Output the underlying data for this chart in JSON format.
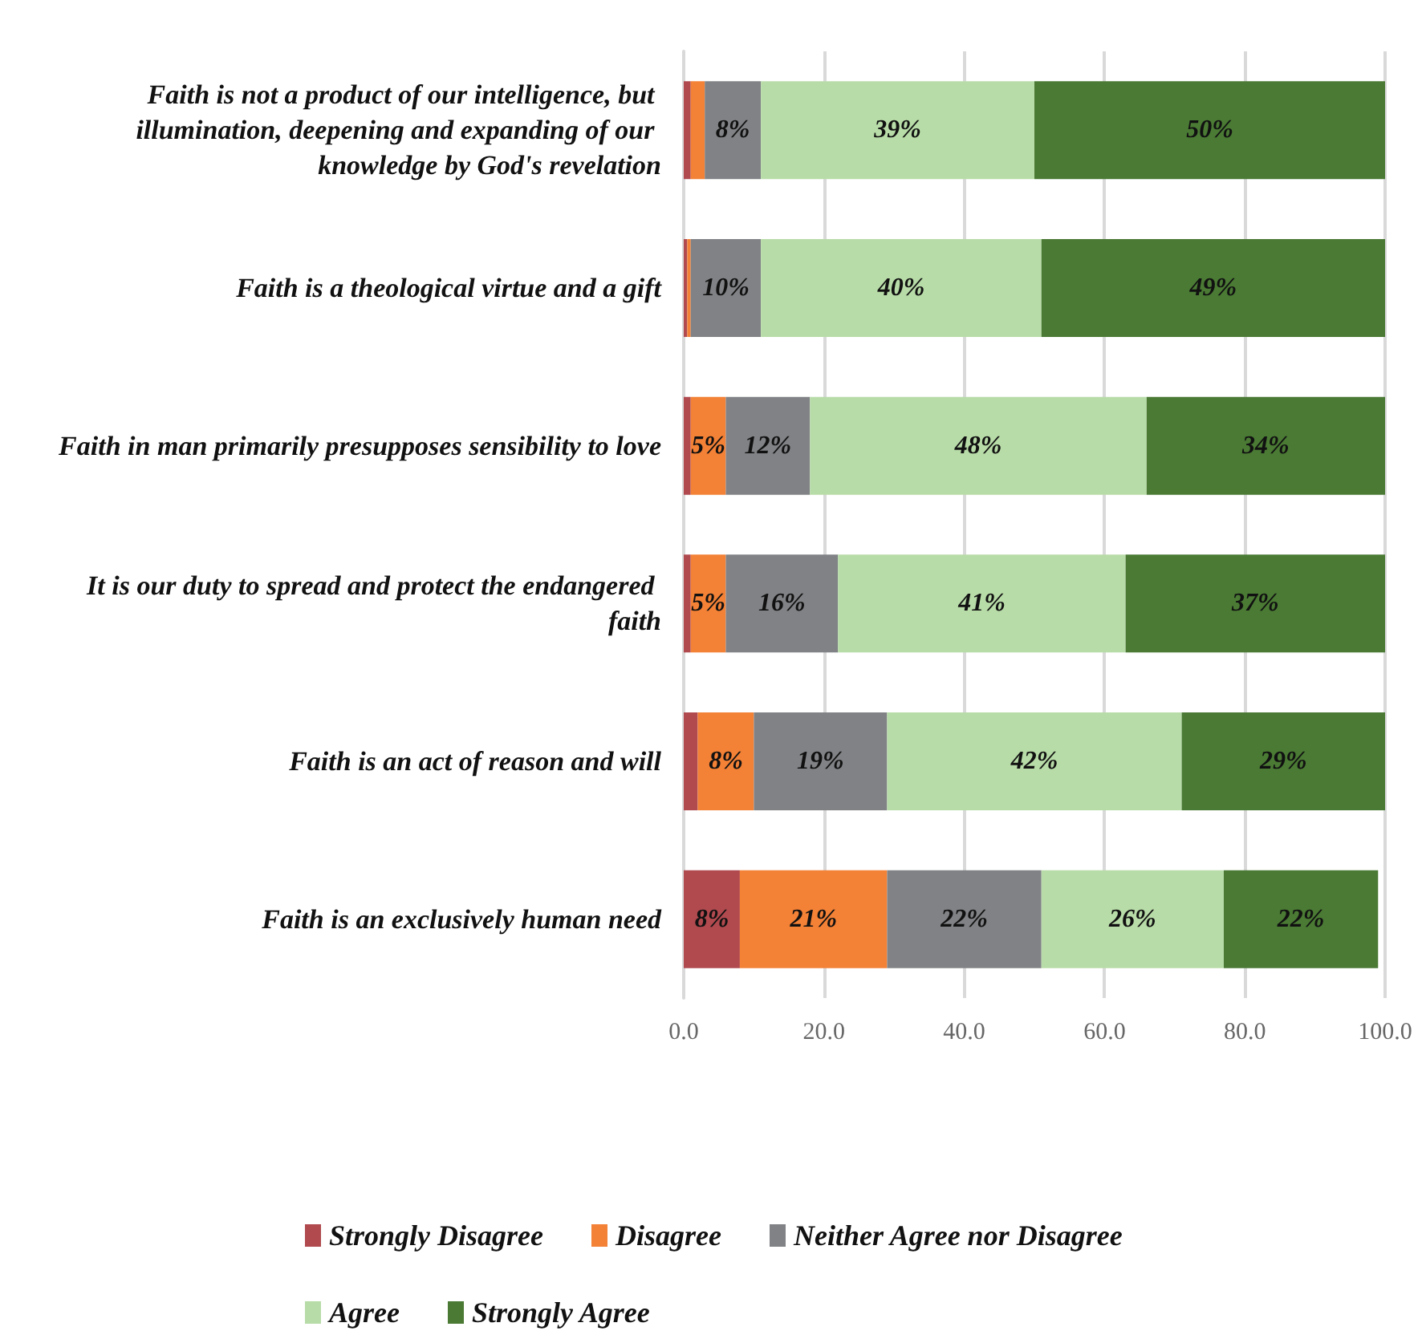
{
  "chart_data": {
    "type": "bar",
    "orientation": "horizontal",
    "stacked": true,
    "categories": [
      "Faith is not a product of our intelligence, but illumination, deepening and expanding of our knowledge by God's revelation",
      "Faith is a theological virtue and a gift",
      "Faith in man primarily presupposes sensibility to love",
      "It is our duty to spread and protect the endangered faith",
      "Faith is an act of reason and will",
      "Faith is an exclusively human need"
    ],
    "series": [
      {
        "name": "Strongly Disagree",
        "color": "#b04a4f",
        "values": [
          1,
          0.5,
          1,
          1,
          2,
          8
        ],
        "value_labels": [
          null,
          null,
          null,
          null,
          null,
          "8%"
        ]
      },
      {
        "name": "Disagree",
        "color": "#f38136",
        "values": [
          2,
          0.5,
          5,
          5,
          8,
          21
        ],
        "value_labels": [
          null,
          null,
          "5%",
          "5%",
          "8%",
          "21%"
        ]
      },
      {
        "name": "Neither Agree nor Disagree",
        "color": "#808285",
        "values": [
          8,
          10,
          12,
          16,
          19,
          22
        ],
        "value_labels": [
          "8%",
          "10%",
          "12%",
          "16%",
          "19%",
          "22%"
        ]
      },
      {
        "name": "Agree",
        "color": "#b8dca8",
        "values": [
          39,
          40,
          48,
          41,
          42,
          26
        ],
        "value_labels": [
          "39%",
          "40%",
          "48%",
          "41%",
          "42%",
          "26%"
        ]
      },
      {
        "name": "Strongly Agree",
        "color": "#4a7a34",
        "values": [
          50,
          49,
          34,
          37,
          29,
          22
        ],
        "value_labels": [
          "50%",
          "49%",
          "34%",
          "37%",
          "29%",
          "22%"
        ]
      }
    ],
    "xlim": [
      0,
      100
    ],
    "xticks": [
      {
        "value": 0,
        "label": "0.0"
      },
      {
        "value": 20,
        "label": "20.0"
      },
      {
        "value": 40,
        "label": "40.0"
      },
      {
        "value": 60,
        "label": "60.0"
      },
      {
        "value": 80,
        "label": "80.0"
      },
      {
        "value": 100,
        "label": "100.0"
      }
    ],
    "grid": "x",
    "legend": "bottom"
  }
}
